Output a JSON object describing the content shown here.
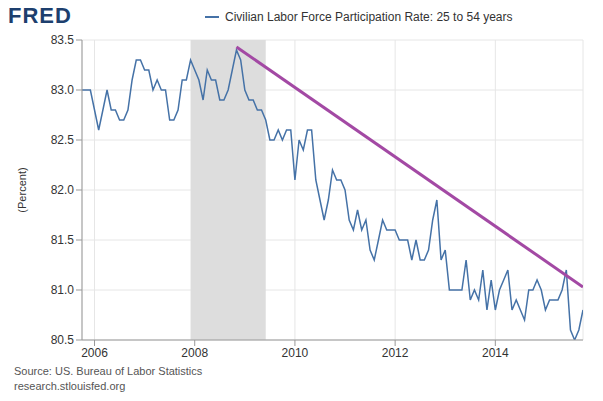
{
  "chart_data": {
    "type": "line",
    "logo": "FRED",
    "source": "Source: US. Bureau of Labor Statistics",
    "site": "research.stlouisfed.org",
    "y_label": "(Percent)",
    "grid": true,
    "x": [
      2005.75,
      2005.833,
      2005.917,
      2006,
      2006.083,
      2006.167,
      2006.25,
      2006.333,
      2006.417,
      2006.5,
      2006.583,
      2006.667,
      2006.75,
      2006.833,
      2006.917,
      2007,
      2007.083,
      2007.167,
      2007.25,
      2007.333,
      2007.417,
      2007.5,
      2007.583,
      2007.667,
      2007.75,
      2007.833,
      2007.917,
      2008,
      2008.083,
      2008.167,
      2008.25,
      2008.333,
      2008.417,
      2008.5,
      2008.583,
      2008.667,
      2008.75,
      2008.833,
      2008.917,
      2009,
      2009.083,
      2009.167,
      2009.25,
      2009.333,
      2009.417,
      2009.5,
      2009.583,
      2009.667,
      2009.75,
      2009.833,
      2009.917,
      2010,
      2010.083,
      2010.167,
      2010.25,
      2010.333,
      2010.417,
      2010.5,
      2010.583,
      2010.667,
      2010.75,
      2010.833,
      2010.917,
      2011,
      2011.083,
      2011.167,
      2011.25,
      2011.333,
      2011.417,
      2011.5,
      2011.583,
      2011.667,
      2011.75,
      2011.833,
      2011.917,
      2012,
      2012.083,
      2012.167,
      2012.25,
      2012.333,
      2012.417,
      2012.5,
      2012.583,
      2012.667,
      2012.75,
      2012.833,
      2012.917,
      2013,
      2013.083,
      2013.167,
      2013.25,
      2013.333,
      2013.417,
      2013.5,
      2013.583,
      2013.667,
      2013.75,
      2013.833,
      2013.917,
      2014,
      2014.083,
      2014.167,
      2014.25,
      2014.333,
      2014.417,
      2014.5,
      2014.583,
      2014.667,
      2014.75,
      2014.833,
      2014.917,
      2015,
      2015.083,
      2015.167,
      2015.25,
      2015.333,
      2015.417,
      2015.5,
      2015.583,
      2015.667,
      2015.75
    ],
    "series": [
      {
        "name": "Civilian Labor Force Participation Rate: 25 to 54 years",
        "color": "#4572a7",
        "values": [
          83.0,
          83.0,
          83.0,
          82.8,
          82.6,
          82.8,
          83.0,
          82.8,
          82.8,
          82.7,
          82.7,
          82.8,
          83.1,
          83.3,
          83.3,
          83.2,
          83.2,
          83.0,
          83.1,
          83.0,
          83.0,
          82.7,
          82.7,
          82.8,
          83.1,
          83.1,
          83.3,
          83.2,
          83.1,
          82.9,
          83.2,
          83.1,
          83.1,
          82.9,
          82.9,
          83.0,
          83.2,
          83.4,
          83.3,
          83.0,
          82.9,
          82.9,
          82.8,
          82.8,
          82.7,
          82.5,
          82.5,
          82.6,
          82.5,
          82.6,
          82.6,
          82.1,
          82.5,
          82.4,
          82.6,
          82.6,
          82.1,
          81.9,
          81.7,
          81.9,
          82.2,
          82.1,
          82.1,
          82.0,
          81.7,
          81.6,
          81.8,
          81.6,
          81.7,
          81.4,
          81.3,
          81.5,
          81.7,
          81.6,
          81.6,
          81.6,
          81.5,
          81.5,
          81.5,
          81.3,
          81.5,
          81.3,
          81.3,
          81.4,
          81.7,
          81.9,
          81.3,
          81.4,
          81.0,
          81.0,
          81.0,
          81.0,
          81.3,
          80.9,
          81.0,
          80.9,
          81.2,
          80.8,
          81.1,
          80.8,
          81.0,
          81.1,
          81.2,
          80.8,
          80.9,
          80.8,
          80.7,
          81.0,
          81.0,
          81.1,
          81.0,
          80.8,
          80.9,
          80.9,
          80.9,
          81.0,
          81.2,
          80.6,
          80.5,
          80.6,
          80.8
        ]
      }
    ],
    "recession": [
      2007.917,
      2009.417
    ],
    "trend_line": {
      "x": [
        2008.833,
        2015.75
      ],
      "values": [
        83.43,
        81.03
      ],
      "color": "#a349a4"
    },
    "xlim": [
      2005.75,
      2015.75
    ],
    "xticks": [
      2006,
      2008,
      2010,
      2012,
      2014
    ],
    "ylim": [
      80.5,
      83.5
    ],
    "yticks": [
      80.5,
      {
        "value": 81,
        "label": "81.0"
      },
      81.5,
      {
        "value": 82,
        "label": "82.0"
      },
      82.5,
      {
        "value": 83,
        "label": "83.0"
      },
      83.5
    ]
  }
}
